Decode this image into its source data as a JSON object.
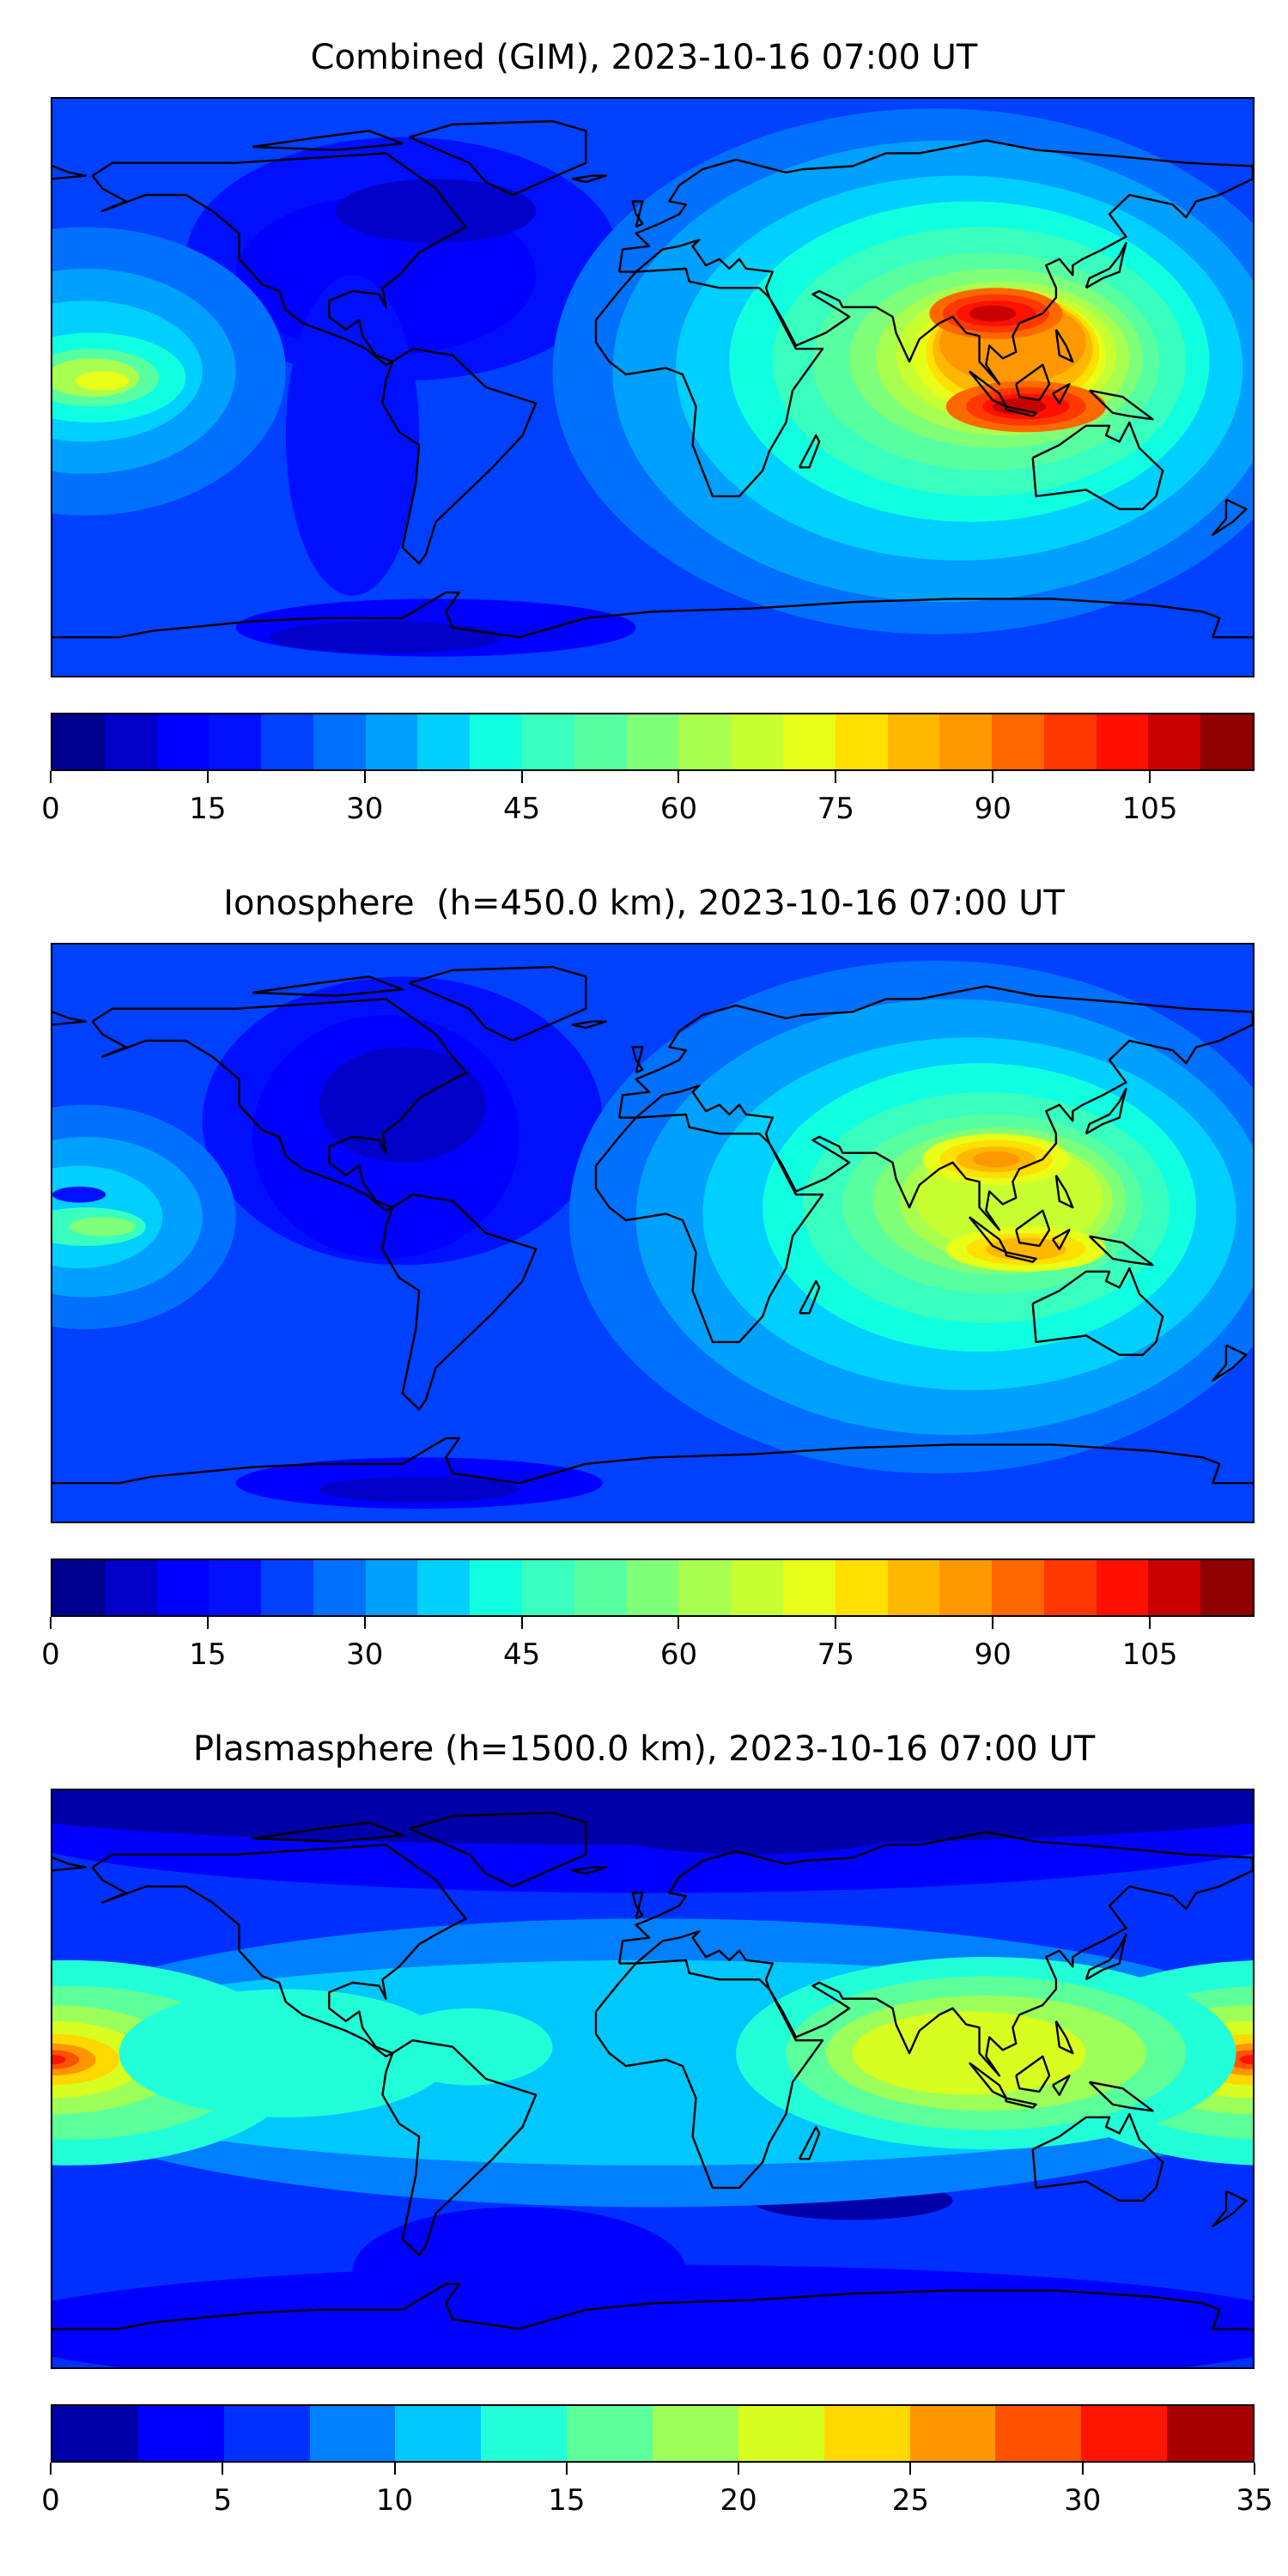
{
  "panels": [
    {
      "title": "Combined (GIM), 2023-10-16 07:00 UT",
      "colorbar": {
        "min": 0,
        "max": 115,
        "step": 5,
        "ticks": [
          "0",
          "15",
          "30",
          "45",
          "60",
          "75",
          "90",
          "105"
        ],
        "tick_values": [
          0,
          15,
          30,
          45,
          60,
          75,
          90,
          105
        ],
        "colors": [
          "#000090",
          "#0000c8",
          "#0000ff",
          "#0010ff",
          "#0040ff",
          "#0070ff",
          "#00a0ff",
          "#00d0ff",
          "#10ffe0",
          "#38ffc0",
          "#58ffa0",
          "#80ff78",
          "#a8ff50",
          "#c8ff30",
          "#e8ff18",
          "#ffe000",
          "#ffb800",
          "#ff9800",
          "#ff6800",
          "#ff3800",
          "#ff1000",
          "#c80000",
          "#900000"
        ]
      }
    },
    {
      "title": "Ionosphere  (h=450.0 km), 2023-10-16 07:00 UT",
      "colorbar": {
        "min": 0,
        "max": 115,
        "step": 5,
        "ticks": [
          "0",
          "15",
          "30",
          "45",
          "60",
          "75",
          "90",
          "105"
        ],
        "tick_values": [
          0,
          15,
          30,
          45,
          60,
          75,
          90,
          105
        ],
        "colors": [
          "#000090",
          "#0000c8",
          "#0000ff",
          "#0010ff",
          "#0040ff",
          "#0070ff",
          "#00a0ff",
          "#00d0ff",
          "#10ffe0",
          "#38ffc0",
          "#58ffa0",
          "#80ff78",
          "#a8ff50",
          "#c8ff30",
          "#e8ff18",
          "#ffe000",
          "#ffb800",
          "#ff9800",
          "#ff6800",
          "#ff3800",
          "#ff1000",
          "#c80000",
          "#900000"
        ]
      }
    },
    {
      "title": "Plasmasphere (h=1500.0 km), 2023-10-16 07:00 UT",
      "colorbar": {
        "min": 0,
        "max": 35,
        "step": 2.5,
        "ticks": [
          "0",
          "5",
          "10",
          "15",
          "20",
          "25",
          "30",
          "35"
        ],
        "tick_values": [
          0,
          5,
          10,
          15,
          20,
          25,
          30,
          35
        ],
        "colors": [
          "#0000a8",
          "#0000ff",
          "#0030ff",
          "#0080ff",
          "#00c8ff",
          "#20ffd8",
          "#5cff9a",
          "#9cff5a",
          "#d8ff20",
          "#ffd800",
          "#ff9600",
          "#ff5200",
          "#ff1400",
          "#a80000"
        ]
      }
    }
  ]
}
